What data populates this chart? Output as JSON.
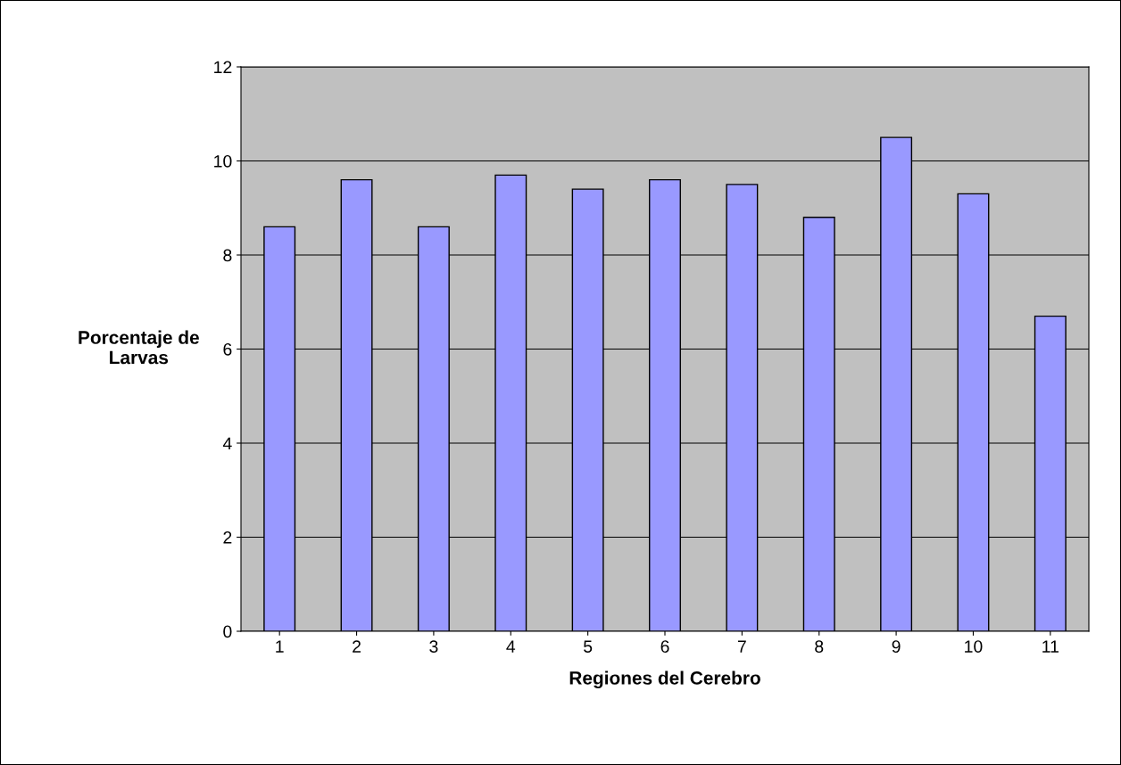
{
  "chart_data": {
    "type": "bar",
    "xlabel": "Regiones del Cerebro",
    "ylabel": "Porcentaje de\nLarvas",
    "categories": [
      "1",
      "2",
      "3",
      "4",
      "5",
      "6",
      "7",
      "8",
      "9",
      "10",
      "11"
    ],
    "values": [
      8.6,
      9.6,
      8.6,
      9.7,
      9.4,
      9.6,
      9.5,
      8.8,
      10.5,
      9.3,
      6.7
    ],
    "color": "#9999ff",
    "ylim": [
      0,
      12
    ],
    "yticks": [
      0,
      2,
      4,
      6,
      8,
      10,
      12
    ],
    "grid": "y"
  }
}
